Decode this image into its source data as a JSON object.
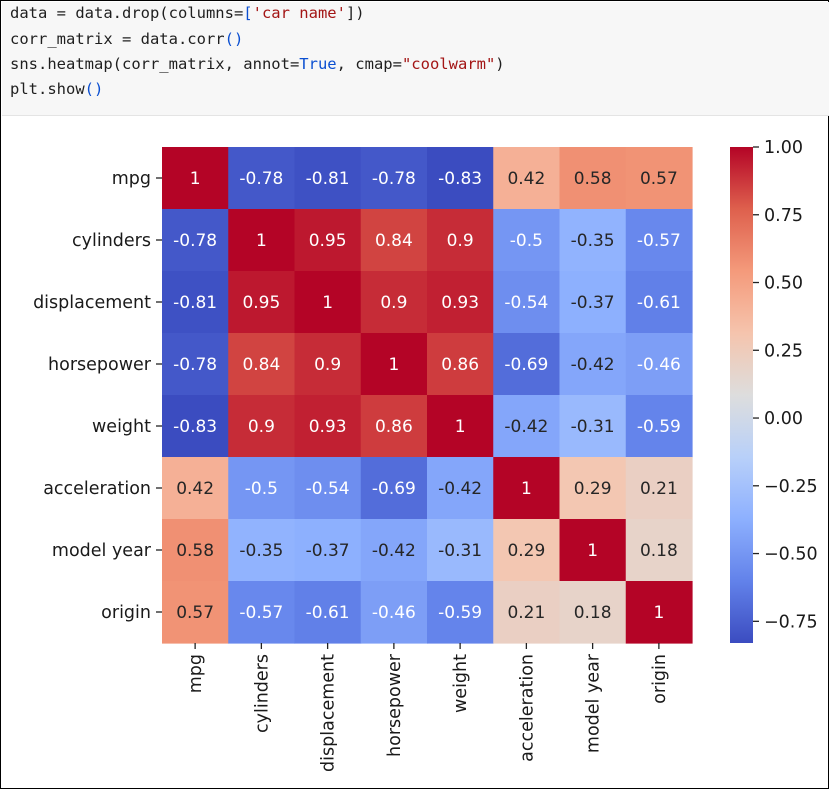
{
  "code_cell": {
    "lines": [
      [
        {
          "t": "data = data.drop(columns=",
          "c": ""
        },
        {
          "t": "[",
          "c": "br"
        },
        {
          "t": "'car name'",
          "c": "str"
        },
        {
          "t": "])",
          "c": ""
        }
      ],
      [
        {
          "t": "corr_matrix = data.corr",
          "c": ""
        },
        {
          "t": "()",
          "c": "br"
        }
      ],
      [
        {
          "t": "sns.heatmap(corr_matrix, annot=",
          "c": ""
        },
        {
          "t": "True",
          "c": "kw"
        },
        {
          "t": ", cmap=",
          "c": ""
        },
        {
          "t": "\"coolwarm\"",
          "c": "str"
        },
        {
          "t": ")",
          "c": ""
        }
      ],
      [
        {
          "t": "plt.show",
          "c": ""
        },
        {
          "t": "()",
          "c": "br"
        }
      ]
    ]
  },
  "chart_data": {
    "type": "heatmap",
    "cmap": "coolwarm",
    "title": "",
    "labels": [
      "mpg",
      "cylinders",
      "displacement",
      "horsepower",
      "weight",
      "acceleration",
      "model year",
      "origin"
    ],
    "annotations": [
      [
        "1",
        "-0.78",
        "-0.81",
        "-0.78",
        "-0.83",
        "0.42",
        "0.58",
        "0.57"
      ],
      [
        "-0.78",
        "1",
        "0.95",
        "0.84",
        "0.9",
        "-0.5",
        "-0.35",
        "-0.57"
      ],
      [
        "-0.81",
        "0.95",
        "1",
        "0.9",
        "0.93",
        "-0.54",
        "-0.37",
        "-0.61"
      ],
      [
        "-0.78",
        "0.84",
        "0.9",
        "1",
        "0.86",
        "-0.69",
        "-0.42",
        "-0.46"
      ],
      [
        "-0.83",
        "0.9",
        "0.93",
        "0.86",
        "1",
        "-0.42",
        "-0.31",
        "-0.59"
      ],
      [
        "0.42",
        "-0.5",
        "-0.54",
        "-0.69",
        "-0.42",
        "1",
        "0.29",
        "0.21"
      ],
      [
        "0.58",
        "-0.35",
        "-0.37",
        "-0.42",
        "-0.31",
        "0.29",
        "1",
        "0.18"
      ],
      [
        "0.57",
        "-0.57",
        "-0.61",
        "-0.46",
        "-0.59",
        "0.21",
        "0.18",
        "1"
      ]
    ],
    "values": [
      [
        1,
        -0.78,
        -0.81,
        -0.78,
        -0.83,
        0.42,
        0.58,
        0.57
      ],
      [
        -0.78,
        1,
        0.95,
        0.84,
        0.9,
        -0.5,
        -0.35,
        -0.57
      ],
      [
        -0.81,
        0.95,
        1,
        0.9,
        0.93,
        -0.54,
        -0.37,
        -0.61
      ],
      [
        -0.78,
        0.84,
        0.9,
        1,
        0.86,
        -0.69,
        -0.42,
        -0.46
      ],
      [
        -0.83,
        0.9,
        0.93,
        0.86,
        1,
        -0.42,
        -0.31,
        -0.59
      ],
      [
        0.42,
        -0.5,
        -0.54,
        -0.69,
        -0.42,
        1,
        0.29,
        0.21
      ],
      [
        0.58,
        -0.35,
        -0.37,
        -0.42,
        -0.31,
        0.29,
        1,
        0.18
      ],
      [
        0.57,
        -0.57,
        -0.61,
        -0.46,
        -0.59,
        0.21,
        0.18,
        1
      ]
    ],
    "vmin": -0.83,
    "vmax": 1.0,
    "colorbar_ticks": [
      {
        "value": 1.0,
        "label": "1.00"
      },
      {
        "value": 0.75,
        "label": "0.75"
      },
      {
        "value": 0.5,
        "label": "0.50"
      },
      {
        "value": 0.25,
        "label": "0.25"
      },
      {
        "value": 0.0,
        "label": "0.00"
      },
      {
        "value": -0.25,
        "label": "−0.25"
      },
      {
        "value": -0.5,
        "label": "−0.50"
      },
      {
        "value": -0.75,
        "label": "−0.75"
      }
    ]
  }
}
